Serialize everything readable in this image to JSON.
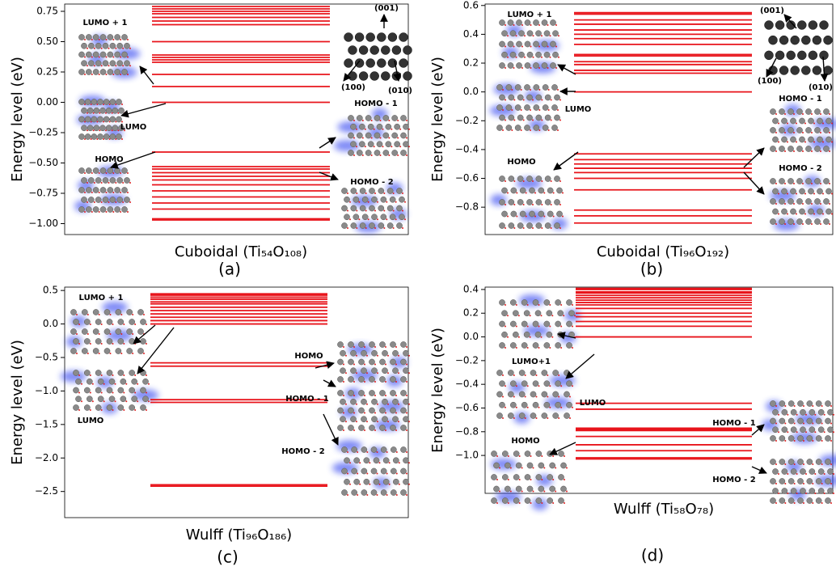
{
  "chart_data": [
    {
      "type": "levels",
      "y_label": "Energy level (eV)",
      "x_label": "Cuboidal (Ti₅₄O₁₀₈)",
      "panel_label": "(a)",
      "color": "#e8141b",
      "values": [
        0.79,
        0.77,
        0.75,
        0.73,
        0.7,
        0.67,
        0.64,
        0.5,
        0.39,
        0.37,
        0.35,
        0.33,
        0.23,
        0.13,
        0.0,
        -0.41,
        -0.53,
        -0.55,
        -0.58,
        -0.61,
        -0.64,
        -0.68,
        -0.73,
        -0.78,
        -0.83,
        -0.88,
        -0.96,
        -0.97
      ],
      "ylim": [
        -1.09,
        0.81
      ],
      "yticks": [
        {
          "value": -1.0,
          "label": "−1.00"
        },
        {
          "value": -0.75,
          "label": "−0.75"
        },
        {
          "value": -0.5,
          "label": "−0.50"
        },
        {
          "value": -0.25,
          "label": "−0.25"
        },
        {
          "value": 0.0,
          "label": "0.00"
        },
        {
          "value": 0.25,
          "label": "0.25"
        },
        {
          "value": 0.5,
          "label": "0.50"
        },
        {
          "value": 0.75,
          "label": "0.75"
        }
      ],
      "annotations": [
        "LUMO + 1",
        "LUMO",
        "HOMO",
        "HOMO - 1",
        "HOMO - 2",
        "(001)",
        "(100)",
        "(010)"
      ]
    },
    {
      "type": "levels",
      "y_label": "Energy level (eV)",
      "x_label": "Cuboidal (Ti₉₆O₁₉₂)",
      "panel_label": "(b)",
      "color": "#e8141b",
      "values": [
        0.55,
        0.54,
        0.5,
        0.47,
        0.43,
        0.4,
        0.37,
        0.33,
        0.26,
        0.25,
        0.21,
        0.19,
        0.15,
        0.13,
        0.0,
        -0.43,
        -0.47,
        -0.5,
        -0.53,
        -0.56,
        -0.6,
        -0.68,
        -0.82,
        -0.86,
        -0.91
      ],
      "ylim": [
        -0.99,
        0.61
      ],
      "yticks": [
        {
          "value": -0.8,
          "label": "−0.8"
        },
        {
          "value": -0.6,
          "label": "−0.6"
        },
        {
          "value": -0.4,
          "label": "−0.4"
        },
        {
          "value": -0.2,
          "label": "−0.2"
        },
        {
          "value": 0.0,
          "label": "0.0"
        },
        0.2,
        0.4,
        0.6
      ],
      "annotations": [
        "LUMO + 1",
        "LUMO",
        "HOMO",
        "HOMO - 1",
        "HOMO - 2",
        "(001)",
        "(100)",
        "(010)"
      ]
    },
    {
      "type": "levels",
      "y_label": "Energy level (eV)",
      "x_label": "Wulff (Ti₉₆O₁₈₆)",
      "panel_label": "(c)",
      "color": "#e8141b",
      "values": [
        0.45,
        0.43,
        0.4,
        0.37,
        0.33,
        0.3,
        0.25,
        0.2,
        0.15,
        0.1,
        0.05,
        0.0,
        -0.58,
        -0.63,
        -1.13,
        -1.17,
        -2.4,
        -2.42
      ],
      "ylim": [
        -2.89,
        0.55
      ],
      "yticks": [
        {
          "value": -2.5,
          "label": "−2.5"
        },
        {
          "value": -2.0,
          "label": "−2.0"
        },
        {
          "value": -1.5,
          "label": "−1.5"
        },
        {
          "value": -1.0,
          "label": "−1.0"
        },
        {
          "value": -0.5,
          "label": "−0.5"
        },
        {
          "value": 0.0,
          "label": "0.0"
        },
        0.5
      ],
      "annotations": [
        "LUMO + 1",
        "LUMO",
        "HOMO",
        "HOMO - 1",
        "HOMO - 2"
      ]
    },
    {
      "type": "levels",
      "y_label": "Energy level (eV)",
      "x_label": "Wulff (Ti₅₈O₇₈)",
      "panel_label": "(d)",
      "color": "#e8141b",
      "values": [
        0.41,
        0.4,
        0.38,
        0.37,
        0.35,
        0.33,
        0.31,
        0.29,
        0.27,
        0.24,
        0.2,
        0.17,
        0.13,
        0.09,
        0.0,
        -0.56,
        -0.61,
        -0.77,
        -0.78,
        -0.79,
        -0.84,
        -0.91,
        -0.96,
        -1.02,
        -1.03
      ],
      "ylim": [
        -1.32,
        0.42
      ],
      "yticks": [
        {
          "value": -1.0,
          "label": "−1.0"
        },
        {
          "value": -0.8,
          "label": "−0.8"
        },
        {
          "value": -0.6,
          "label": "−0.6"
        },
        {
          "value": -0.4,
          "label": "−0.4"
        },
        {
          "value": -0.2,
          "label": "−0.2"
        },
        {
          "value": 0.0,
          "label": "0.0"
        },
        0.2,
        0.4
      ],
      "annotations": [
        "LUMO+1",
        "LUMO",
        "HOMO",
        "HOMO - 1",
        "HOMO - 2"
      ]
    }
  ]
}
